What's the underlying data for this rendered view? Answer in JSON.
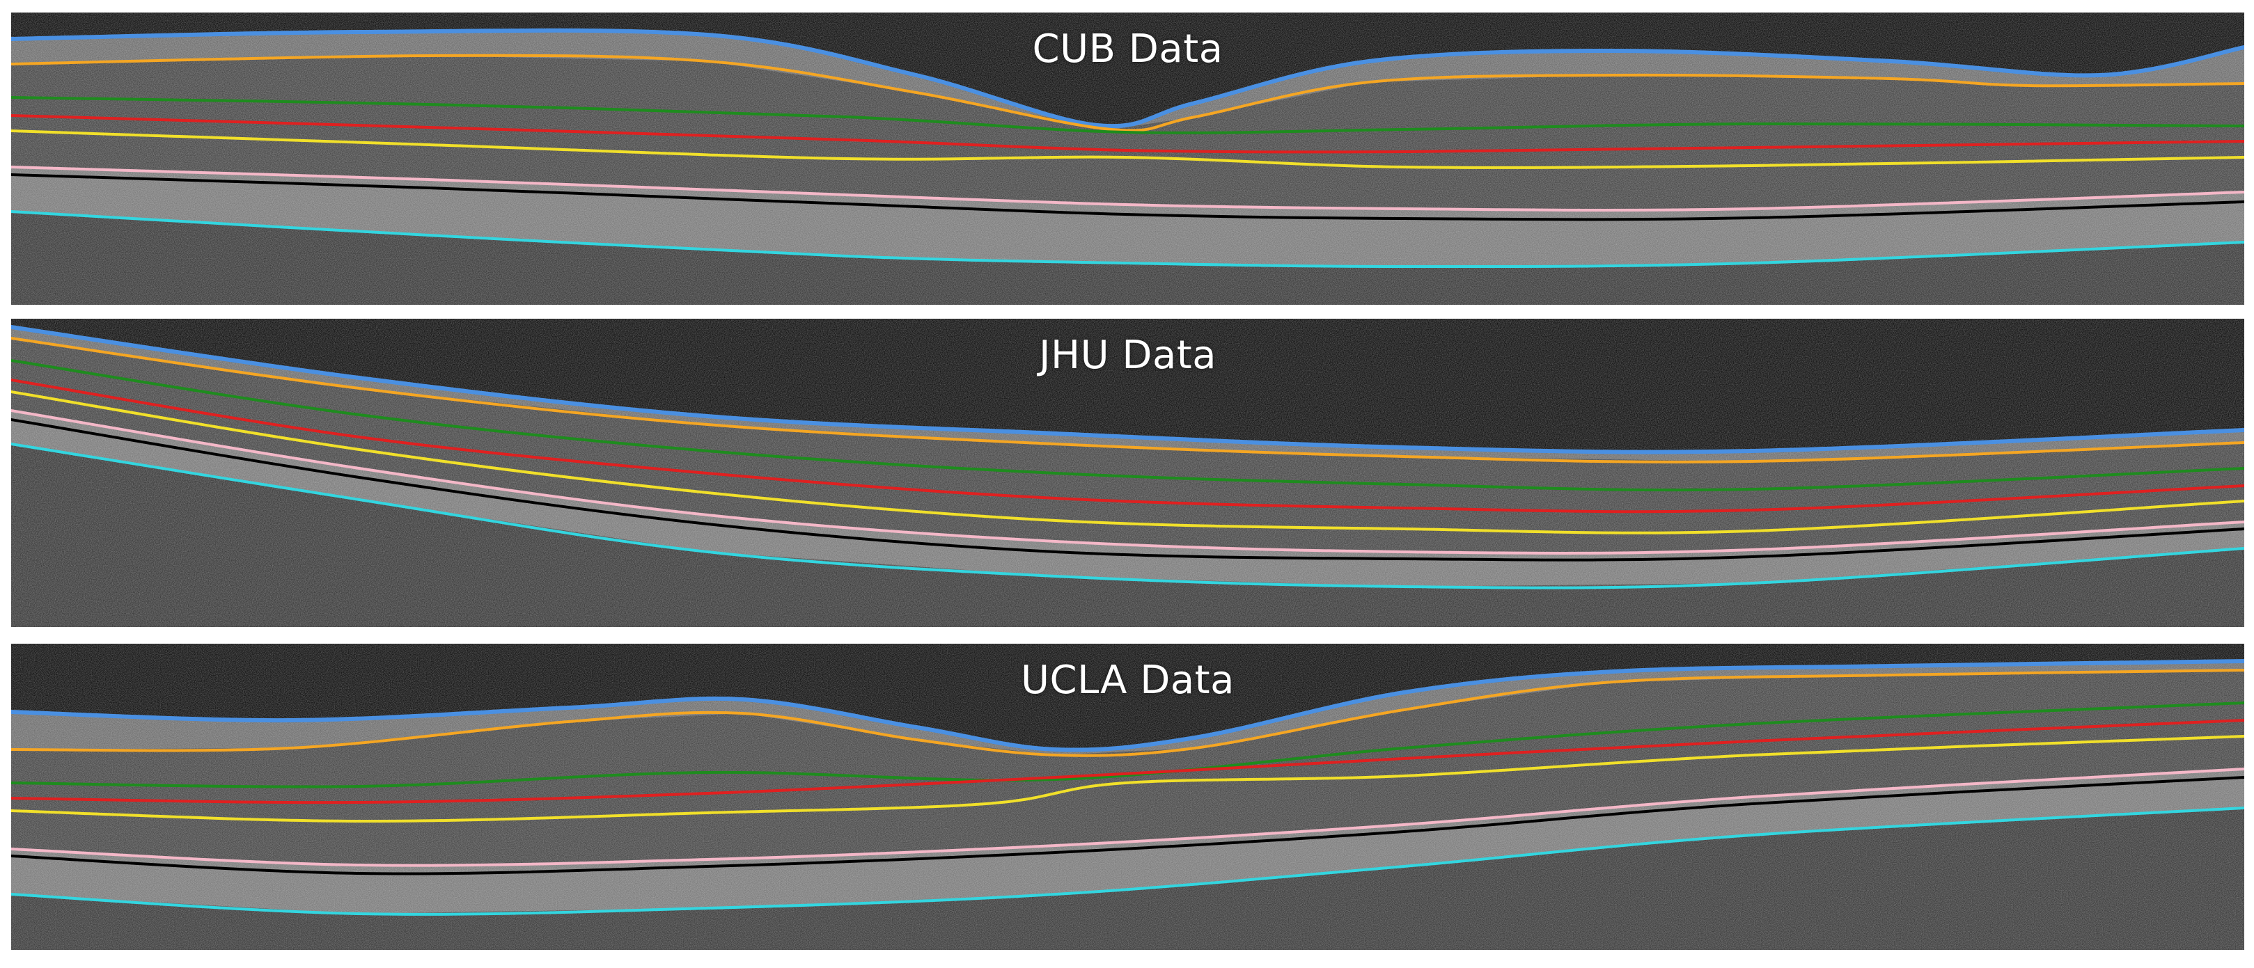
{
  "colors": {
    "background": "#ffffff",
    "layer_lines": [
      "#4a90e2",
      "#f5a623",
      "#1e8c1e",
      "#e02020",
      "#f1e02a",
      "#f4b8c8",
      "#000000",
      "#33d6e0"
    ]
  },
  "panels": [
    {
      "title": "CUB Data"
    },
    {
      "title": "JHU Data"
    },
    {
      "title": "UCLA Data"
    }
  ]
}
